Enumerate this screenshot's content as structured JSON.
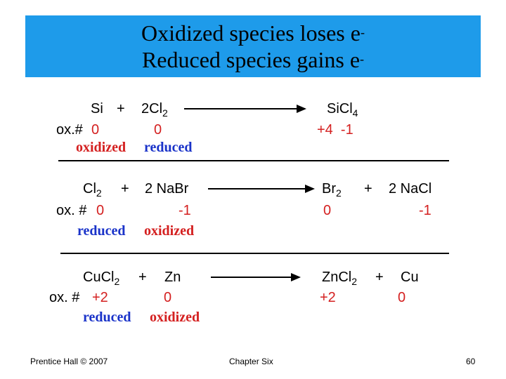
{
  "title": {
    "line1": "Oxidized species loses e",
    "line1_sup": "-",
    "line2": "Reduced species gains e",
    "line2_sup": "-"
  },
  "reactions": [
    {
      "reactant1": "Si",
      "plus1": "+",
      "reactant2": {
        "text": "2Cl",
        "sub": "2"
      },
      "product1": {
        "text": "SiCl",
        "sub": "4"
      },
      "ox_label": "ox.#",
      "ox_reactant1": "0",
      "ox_reactant2": "0",
      "ox_product1": "+4  -1",
      "role_reactant1": "oxidized",
      "role_reactant2": "reduced"
    },
    {
      "reactant1": {
        "text": "Cl",
        "sub": "2"
      },
      "plus1": "+",
      "reactant2": "2 NaBr",
      "product1": {
        "text": "Br",
        "sub": "2"
      },
      "plus2": "+",
      "product2": "2 NaCl",
      "ox_label": "ox. #",
      "ox_reactant1": "0",
      "ox_reactant2": "-1",
      "ox_product1": "0",
      "ox_product2": "-1",
      "role_reactant1": "reduced",
      "role_reactant2": "oxidized"
    },
    {
      "reactant1": {
        "text": "CuCl",
        "sub": "2"
      },
      "plus1": "+",
      "reactant2": "Zn",
      "product1": {
        "text": "ZnCl",
        "sub": "2"
      },
      "plus2": "+",
      "product2": "Cu",
      "ox_label": "ox. #",
      "ox_reactant1": "+2",
      "ox_reactant2": "0",
      "ox_product1": "+2",
      "ox_product2": "0",
      "role_reactant1": "reduced",
      "role_reactant2": "oxidized"
    }
  ],
  "footer": {
    "left": "Prentice Hall © 2007",
    "center": "Chapter Six",
    "right": "60"
  },
  "colors": {
    "title_band": "#1e9bea",
    "oxidation_red": "#d42020",
    "reduction_blue": "#1a33c9"
  }
}
